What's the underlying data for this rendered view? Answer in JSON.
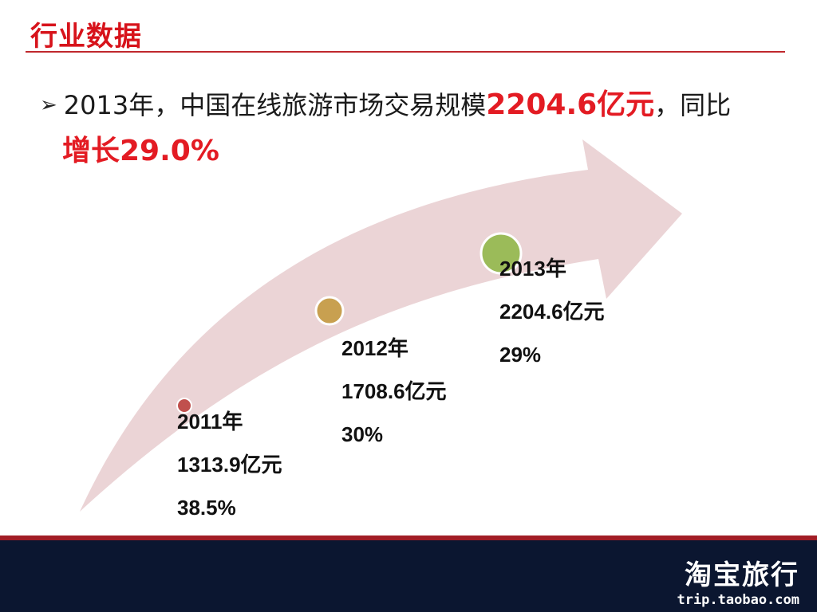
{
  "header": {
    "title": "行业数据"
  },
  "bullet": {
    "text_a": "2013年，中国在线旅游市场交易规模",
    "highlight_a": "2204.6亿元",
    "text_b": "，同比",
    "highlight_b": "增长29.0%"
  },
  "timeline": [
    {
      "year": "2011年",
      "value": "1313.9亿元",
      "growth": "38.5%",
      "dot_color": "#c0504d"
    },
    {
      "year": "2012年",
      "value": "1708.6亿元",
      "growth": "30%",
      "dot_color": "#c8a050"
    },
    {
      "year": "2013年",
      "value": "2204.6亿元",
      "growth": "29%",
      "dot_color": "#9bbb59"
    }
  ],
  "colors": {
    "accent_red": "#e31b23",
    "arrow_fill": "#ebd4d6",
    "footer_bg": "#0b1630"
  },
  "footer": {
    "brand": "淘宝旅行",
    "url": "trip.taobao.com"
  }
}
